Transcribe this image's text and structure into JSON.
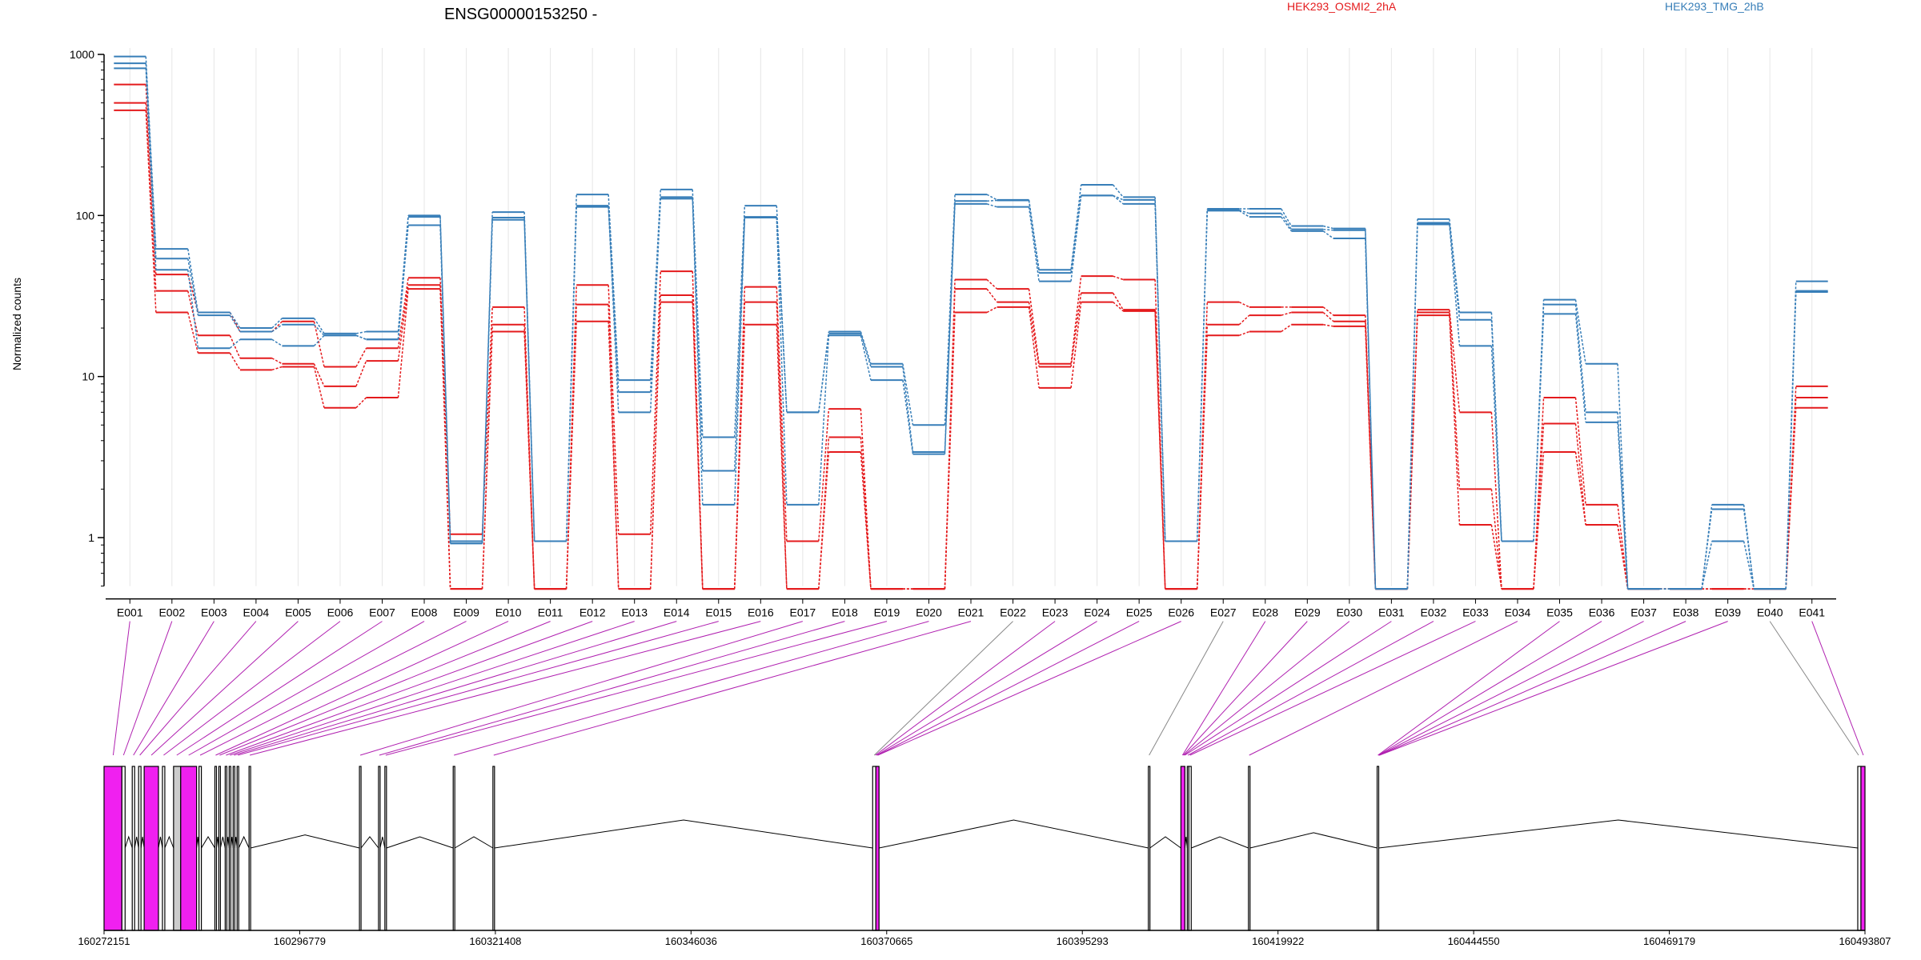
{
  "chart_data": {
    "type": "line",
    "title": "ENSG00000153250 -",
    "xlabel": "",
    "ylabel": "Normalized counts",
    "y_scale": "log",
    "ylim": [
      0.5,
      1000
    ],
    "y_ticks": [
      {
        "value": 1,
        "label": "1"
      },
      {
        "value": 10,
        "label": "10"
      },
      {
        "value": 100,
        "label": "100"
      },
      {
        "value": 1000,
        "label": "1000"
      }
    ],
    "grid": "vertical",
    "legend_position": "top",
    "categories": [
      "E001",
      "E002",
      "E003",
      "E004",
      "E005",
      "E006",
      "E007",
      "E008",
      "E009",
      "E010",
      "E011",
      "E012",
      "E013",
      "E014",
      "E015",
      "E016",
      "E017",
      "E018",
      "E019",
      "E020",
      "E021",
      "E022",
      "E023",
      "E024",
      "E025",
      "E026",
      "E027",
      "E028",
      "E029",
      "E030",
      "E031",
      "E032",
      "E033",
      "E034",
      "E035",
      "E036",
      "E037",
      "E038",
      "E039",
      "E040",
      "E041"
    ],
    "groups": [
      {
        "name": "HEK293_OSMI2_2hA",
        "color": "#e41a1c"
      },
      {
        "name": "HEK293_TMG_2hB",
        "color": "#377eb8"
      }
    ],
    "series": [
      {
        "group": "HEK293_OSMI2_2hA",
        "values": [
          650,
          43,
          25,
          19,
          22,
          11.5,
          15,
          41,
          1.05,
          27,
          0.48,
          37,
          1.05,
          45,
          0.48,
          36,
          0.95,
          6.3,
          0.48,
          0.48,
          40,
          35,
          12,
          42,
          40,
          0.48,
          29,
          27,
          27,
          24,
          0.48,
          26,
          6,
          0.48,
          7.4,
          1.6,
          0.48,
          0.48,
          0.48,
          0.48,
          8.7
        ]
      },
      {
        "group": "HEK293_OSMI2_2hA",
        "values": [
          500,
          34,
          18,
          13,
          12,
          8.7,
          12.5,
          37,
          0.48,
          21,
          0.48,
          28,
          0.48,
          32,
          0.48,
          29,
          0.48,
          4.2,
          0.48,
          0.48,
          35,
          29,
          11.5,
          33,
          26,
          0.48,
          21,
          24,
          25,
          22,
          0.48,
          25,
          2,
          0.48,
          5.1,
          1.2,
          0.48,
          0.48,
          0.48,
          0.48,
          7.4
        ]
      },
      {
        "group": "HEK293_OSMI2_2hA",
        "values": [
          450,
          25,
          14,
          11,
          11.5,
          6.4,
          7.4,
          35,
          0.48,
          19,
          0.48,
          22,
          0.48,
          29,
          0.48,
          21,
          0.48,
          3.4,
          0.48,
          0.48,
          25,
          27,
          8.5,
          29,
          25.5,
          0.48,
          18,
          19,
          21,
          20.5,
          0.48,
          24,
          1.2,
          0.48,
          3.4,
          1.2,
          0.48,
          0.48,
          0.48,
          0.48,
          6.4
        ]
      },
      {
        "group": "HEK293_TMG_2hB",
        "values": [
          970,
          62,
          25,
          20,
          23,
          18.5,
          19,
          100,
          0.95,
          105,
          0.95,
          135,
          9.5,
          145,
          4.2,
          115,
          6,
          19,
          12,
          5,
          135,
          125,
          46,
          155,
          130,
          0.95,
          110,
          110,
          86,
          83,
          0.48,
          95,
          25,
          0.95,
          30,
          12,
          0.48,
          0.48,
          1.6,
          0.48,
          39
        ]
      },
      {
        "group": "HEK293_TMG_2hB",
        "values": [
          880,
          54,
          24,
          19,
          21,
          18,
          17,
          98,
          0.92,
          97,
          0.95,
          115,
          8,
          130,
          2.6,
          98,
          6,
          18.5,
          11.5,
          3.4,
          123,
          124,
          44,
          133,
          125,
          0.95,
          108,
          103,
          82,
          81,
          0.48,
          90,
          22.5,
          0.95,
          28,
          6,
          0.48,
          0.48,
          1.5,
          0.48,
          34
        ]
      },
      {
        "group": "HEK293_TMG_2hB",
        "values": [
          820,
          46,
          15,
          17,
          15.5,
          18,
          17,
          87,
          0.92,
          94,
          0.95,
          113,
          6,
          127,
          1.6,
          97,
          1.6,
          18,
          9.5,
          3.3,
          118,
          113,
          39,
          133,
          118,
          0.95,
          107,
          98,
          80,
          72,
          0.48,
          88,
          15.5,
          0.95,
          24.5,
          5.2,
          0.48,
          0.48,
          0.95,
          0.48,
          33.5
        ]
      }
    ],
    "gene_model": {
      "coordinate_ticks": [
        "160272151",
        "160296779",
        "160321408",
        "160346036",
        "160370665",
        "160395293",
        "160419922",
        "160444550",
        "160469179",
        "160493807"
      ],
      "exons": [
        {
          "start": 160272151,
          "end": 160274400,
          "filled": true
        },
        {
          "start": 160274400,
          "end": 160274800,
          "filled": false
        },
        {
          "start": 160275700,
          "end": 160276000,
          "filled": false
        },
        {
          "start": 160276500,
          "end": 160276800,
          "filled": false
        },
        {
          "start": 160277200,
          "end": 160279000,
          "filled": true
        },
        {
          "start": 160279500,
          "end": 160279800,
          "filled": false
        },
        {
          "start": 160280900,
          "end": 160281800,
          "filled": false,
          "gray": true
        },
        {
          "start": 160281800,
          "end": 160283800,
          "filled": true
        },
        {
          "start": 160284100,
          "end": 160284400,
          "filled": false
        },
        {
          "start": 160286100,
          "end": 160286300,
          "filled": false
        },
        {
          "start": 160286600,
          "end": 160286800,
          "filled": false
        },
        {
          "start": 160287400,
          "end": 160287600,
          "filled": false
        },
        {
          "start": 160287900,
          "end": 160288100,
          "filled": false
        },
        {
          "start": 160288400,
          "end": 160288600,
          "filled": false
        },
        {
          "start": 160288900,
          "end": 160289100,
          "filled": false
        },
        {
          "start": 160290400,
          "end": 160290600,
          "filled": false
        },
        {
          "start": 160304300,
          "end": 160304500,
          "filled": false
        },
        {
          "start": 160306700,
          "end": 160306900,
          "filled": false
        },
        {
          "start": 160307500,
          "end": 160307700,
          "filled": false
        },
        {
          "start": 160316100,
          "end": 160316300,
          "filled": false
        },
        {
          "start": 160321100,
          "end": 160321300,
          "filled": false
        },
        {
          "start": 160368900,
          "end": 160369300,
          "filled": false
        },
        {
          "start": 160369300,
          "end": 160369700,
          "filled": true
        },
        {
          "start": 160403600,
          "end": 160403800,
          "filled": false
        },
        {
          "start": 160407700,
          "end": 160408200,
          "filled": true
        },
        {
          "start": 160408500,
          "end": 160408700,
          "filled": false
        },
        {
          "start": 160408700,
          "end": 160409000,
          "filled": false
        },
        {
          "start": 160416200,
          "end": 160416400,
          "filled": false
        },
        {
          "start": 160432400,
          "end": 160432600,
          "filled": false
        },
        {
          "start": 160492900,
          "end": 160493300,
          "filled": false
        },
        {
          "start": 160493300,
          "end": 160493807,
          "filled": true
        }
      ],
      "exon_map": [
        160273300,
        160274600,
        160275850,
        160276650,
        160278100,
        160279650,
        160281300,
        160282800,
        160284250,
        160286200,
        160286700,
        160287500,
        160288000,
        160288500,
        160289000,
        160290500,
        160304400,
        160306800,
        160307600,
        160316200,
        160321200,
        160369100,
        160369250,
        160369400,
        160369500,
        160369550,
        160403700,
        160407900,
        160408000,
        160408100,
        160408200,
        160408600,
        160408850,
        160416300,
        160432500,
        160432550,
        160432600,
        160432650,
        160432700,
        160493000,
        160493600
      ],
      "highlight_color": "#f020f0"
    }
  }
}
